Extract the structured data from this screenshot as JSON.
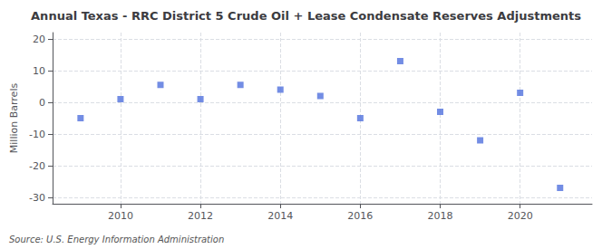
{
  "chart_data": {
    "type": "scatter",
    "title": "Annual Texas - RRC District 5 Crude Oil + Lease Condensate Reserves Adjustments",
    "ylabel": "Million Barrels",
    "annotation": "Source: U.S. Energy Information Administration",
    "x": [
      2009,
      2010,
      2011,
      2012,
      2013,
      2014,
      2015,
      2016,
      2017,
      2018,
      2019,
      2020,
      2021
    ],
    "values": [
      -5.0,
      1.0,
      5.5,
      1.0,
      5.5,
      4.0,
      2.0,
      -5.0,
      13.0,
      -3.0,
      -12.0,
      3.0,
      -27.0
    ],
    "xlim": [
      2008.3,
      2021.8
    ],
    "xticks": [
      2010,
      2012,
      2014,
      2016,
      2018,
      2020
    ],
    "ylim": [
      -32,
      22
    ],
    "yticks": [
      -30,
      -20,
      -10,
      0,
      10,
      20
    ],
    "grid": true,
    "marker": "square"
  }
}
